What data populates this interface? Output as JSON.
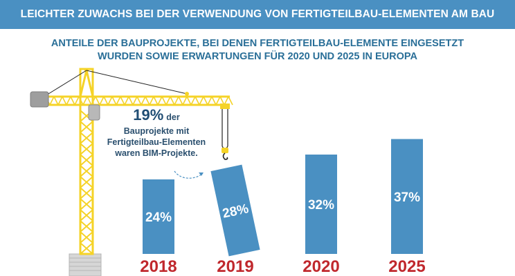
{
  "header": {
    "title": "LEICHTER ZUWACHS BEI DER VERWENDUNG VON FERTIGTEILBAU-ELEMENTEN AM BAU"
  },
  "subtitle": {
    "line1": "ANTEILE DER BAUPROJEKTE, BEI DENEN FERTIGTEILBAU-ELEMENTE EINGESETZT",
    "line2": "WURDEN SOWIE ERWARTUNGEN FÜR 2020 UND 2025 IN EUROPA"
  },
  "annotation": {
    "value": "19%",
    "suffix": "der",
    "lines": [
      "Bauprojekte mit",
      "Fertigteilbau-Elementen",
      "waren BIM-Projekte."
    ]
  },
  "colors": {
    "banner": "#4a90c2",
    "bar": "#4a90c2",
    "year_label": "#c0282d",
    "crane": "#f5d327",
    "subtitle": "#2a6f98"
  },
  "chart_data": {
    "type": "bar",
    "categories": [
      "2018",
      "2019",
      "2020",
      "2025"
    ],
    "values": [
      24,
      28,
      32,
      37
    ],
    "value_labels": [
      "24%",
      "28%",
      "32%",
      "37%"
    ],
    "unit": "%",
    "ylim": [
      0,
      40
    ],
    "title": "",
    "xlabel": "",
    "ylabel": "",
    "grid": false,
    "legend": "none",
    "note": "",
    "tilted_category": "2019"
  }
}
